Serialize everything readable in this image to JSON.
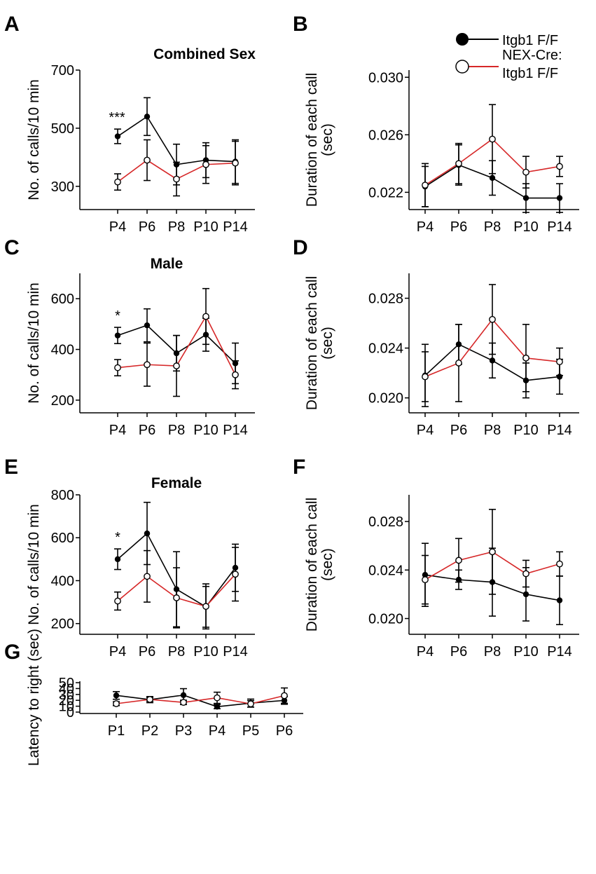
{
  "legend": {
    "entries": [
      {
        "label": "Itgb1 F/F",
        "color": "#000000",
        "marker": "filled-circle"
      },
      {
        "label": "NEX-Cre:",
        "label2": "Itgb1 F/F",
        "color": "#d62728",
        "marker": "open-circle"
      }
    ]
  },
  "chart_data": [
    {
      "id": "A",
      "letter": "A",
      "type": "line",
      "title": "Combined Sex",
      "ylabel": "No. of calls/10 min",
      "xlabel": "",
      "categories": [
        "P4",
        "P6",
        "P8",
        "P10",
        "P14"
      ],
      "ylim": [
        220,
        700
      ],
      "yticks": [
        300,
        500,
        700
      ],
      "ytick_labels": [
        "300",
        "500",
        "700"
      ],
      "annotations": [
        {
          "category": "P4",
          "text": "***"
        }
      ],
      "series": [
        {
          "name": "Itgb1 F/F",
          "values": [
            472,
            540,
            375,
            390,
            385
          ],
          "errors": [
            25,
            65,
            70,
            60,
            75
          ]
        },
        {
          "name": "NEX-Cre: Itgb1 F/F",
          "values": [
            315,
            390,
            325,
            375,
            380
          ],
          "errors": [
            28,
            70,
            58,
            65,
            75
          ]
        }
      ]
    },
    {
      "id": "B",
      "letter": "B",
      "type": "line",
      "title": "",
      "ylabel": "Duration of each call",
      "ylabel2": "(sec)",
      "xlabel": "",
      "categories": [
        "P4",
        "P6",
        "P8",
        "P10",
        "P14"
      ],
      "ylim": [
        0.0208,
        0.0305
      ],
      "yticks": [
        0.022,
        0.026,
        0.03
      ],
      "ytick_labels": [
        "0.022",
        "0.026",
        "0.030"
      ],
      "annotations": [],
      "series": [
        {
          "name": "Itgb1 F/F",
          "values": [
            0.0224,
            0.0239,
            0.023,
            0.0216,
            0.0216
          ],
          "errors": [
            0.0014,
            0.0014,
            0.0012,
            0.001,
            0.001
          ]
        },
        {
          "name": "NEX-Cre: Itgb1 F/F",
          "values": [
            0.0225,
            0.024,
            0.0257,
            0.0234,
            0.0238
          ],
          "errors": [
            0.0015,
            0.0014,
            0.0024,
            0.0011,
            0.0007
          ]
        }
      ]
    },
    {
      "id": "C",
      "letter": "C",
      "type": "line",
      "title": "Male",
      "ylabel": "No. of calls/10 min",
      "xlabel": "",
      "categories": [
        "P4",
        "P6",
        "P8",
        "P10",
        "P14"
      ],
      "ylim": [
        150,
        700
      ],
      "yticks": [
        200,
        400,
        600
      ],
      "ytick_labels": [
        "200",
        "400",
        "600"
      ],
      "annotations": [
        {
          "category": "P4",
          "text": "*"
        }
      ],
      "series": [
        {
          "name": "Itgb1 F/F",
          "values": [
            455,
            495,
            385,
            458,
            345
          ],
          "errors": [
            32,
            65,
            70,
            65,
            80
          ]
        },
        {
          "name": "NEX-Cre: Itgb1 F/F",
          "values": [
            328,
            340,
            335,
            530,
            300
          ],
          "errors": [
            32,
            85,
            120,
            110,
            55
          ]
        }
      ]
    },
    {
      "id": "D",
      "letter": "D",
      "type": "line",
      "title": "",
      "ylabel": "Duration of each call",
      "ylabel2": "(sec)",
      "xlabel": "",
      "categories": [
        "P4",
        "P6",
        "P8",
        "P10",
        "P14"
      ],
      "ylim": [
        0.0188,
        0.03
      ],
      "yticks": [
        0.02,
        0.024,
        0.028
      ],
      "ytick_labels": [
        "0.020",
        "0.024",
        "0.028"
      ],
      "annotations": [],
      "series": [
        {
          "name": "Itgb1 F/F",
          "values": [
            0.0218,
            0.0243,
            0.023,
            0.0214,
            0.0217
          ],
          "errors": [
            0.0025,
            0.0016,
            0.0014,
            0.0014,
            0.0014
          ]
        },
        {
          "name": "NEX-Cre: Itgb1 F/F",
          "values": [
            0.0217,
            0.0228,
            0.0263,
            0.0232,
            0.0229
          ],
          "errors": [
            0.002,
            0.0031,
            0.0028,
            0.0027,
            0.0011
          ]
        }
      ]
    },
    {
      "id": "E",
      "letter": "E",
      "type": "line",
      "title": "Female",
      "ylabel": "No. of calls/10 min",
      "xlabel": "",
      "categories": [
        "P4",
        "P6",
        "P8",
        "P10",
        "P14"
      ],
      "ylim": [
        150,
        800
      ],
      "yticks": [
        200,
        400,
        600,
        800
      ],
      "ytick_labels": [
        "200",
        "400",
        "600",
        "800"
      ],
      "annotations": [
        {
          "category": "P4",
          "text": "*"
        }
      ],
      "series": [
        {
          "name": "Itgb1 F/F",
          "values": [
            500,
            620,
            360,
            278,
            460
          ],
          "errors": [
            48,
            145,
            175,
            95,
            110
          ]
        },
        {
          "name": "NEX-Cre: Itgb1 F/F",
          "values": [
            305,
            420,
            320,
            280,
            430
          ],
          "errors": [
            42,
            120,
            140,
            105,
            125
          ]
        }
      ]
    },
    {
      "id": "F",
      "letter": "F",
      "type": "line",
      "title": "",
      "ylabel": "Duration of each call",
      "ylabel2": "(sec)",
      "xlabel": "",
      "categories": [
        "P4",
        "P6",
        "P8",
        "P10",
        "P14"
      ],
      "ylim": [
        0.0187,
        0.0302
      ],
      "yticks": [
        0.02,
        0.024,
        0.028
      ],
      "ytick_labels": [
        "0.020",
        "0.024",
        "0.028"
      ],
      "annotations": [],
      "series": [
        {
          "name": "Itgb1 F/F",
          "values": [
            0.0236,
            0.0232,
            0.023,
            0.022,
            0.0215
          ],
          "errors": [
            0.0026,
            0.0008,
            0.0028,
            0.0022,
            0.002
          ]
        },
        {
          "name": "NEX-Cre: Itgb1 F/F",
          "values": [
            0.0232,
            0.0248,
            0.0255,
            0.0237,
            0.0245
          ],
          "errors": [
            0.002,
            0.0018,
            0.0035,
            0.0011,
            0.001
          ]
        }
      ]
    },
    {
      "id": "G",
      "letter": "G",
      "type": "line",
      "title": "",
      "ylabel": "Latency to right (sec)",
      "xlabel": "",
      "categories": [
        "P1",
        "P2",
        "P3",
        "P4",
        "P5",
        "P6"
      ],
      "ylim": [
        0,
        50
      ],
      "yticks": [
        0,
        10,
        20,
        30,
        40,
        50
      ],
      "ytick_labels": [
        "0",
        "10",
        "20",
        "30",
        "40",
        "50"
      ],
      "annotations": [],
      "series": [
        {
          "name": "Itgb1 F/F",
          "values": [
            28.3,
            21.2,
            28.8,
            9.2,
            15.3,
            19.8
          ],
          "errors": [
            6.5,
            5.2,
            11.0,
            3.5,
            6.8,
            6.5
          ]
        },
        {
          "name": "NEX-Cre: Itgb1 F/F",
          "values": [
            14.3,
            21.5,
            16.5,
            24.3,
            14.0,
            28.0
          ],
          "errors": [
            3.3,
            3.3,
            3.7,
            9.5,
            5.5,
            13.0
          ]
        }
      ]
    }
  ]
}
